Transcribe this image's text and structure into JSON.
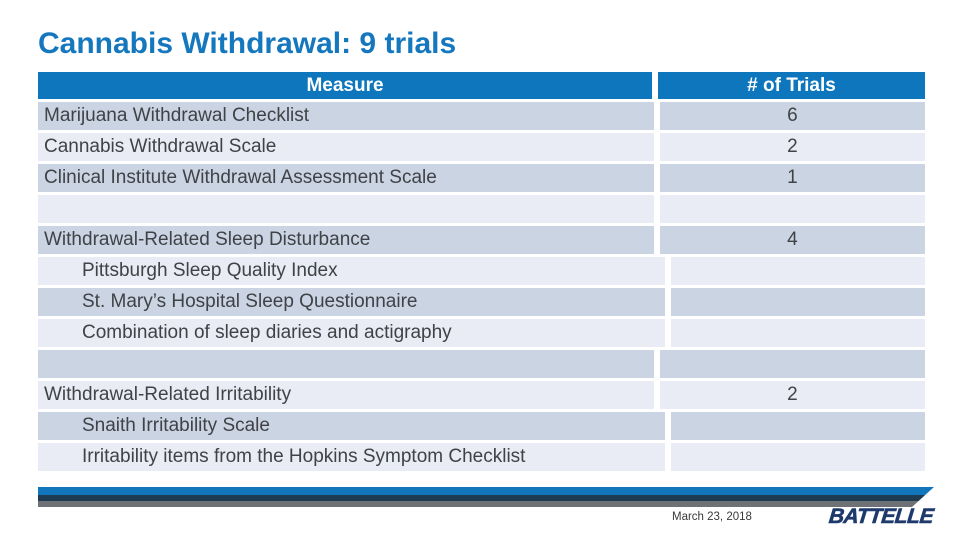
{
  "slide": {
    "title": "Cannabis Withdrawal: 9 trials",
    "footer": {
      "date": "March 23, 2018",
      "logo_text": "BATTELLE"
    }
  },
  "table": {
    "columns": [
      "Measure",
      "# of Trials"
    ],
    "rows": [
      {
        "label": "Marijuana Withdrawal Checklist",
        "value": "6",
        "indent": false
      },
      {
        "label": "Cannabis Withdrawal Scale",
        "value": "2",
        "indent": false
      },
      {
        "label": "Clinical Institute Withdrawal Assessment Scale",
        "value": "1",
        "indent": false
      },
      {
        "label": "",
        "value": "",
        "indent": false
      },
      {
        "label": "Withdrawal-Related Sleep Disturbance",
        "value": "4",
        "indent": false
      },
      {
        "label": "Pittsburgh Sleep Quality Index",
        "value": "",
        "indent": true
      },
      {
        "label": "St. Mary’s Hospital Sleep Questionnaire",
        "value": "",
        "indent": true
      },
      {
        "label": "Combination of sleep diaries and actigraphy",
        "value": "",
        "indent": true
      },
      {
        "label": "",
        "value": "",
        "indent": false
      },
      {
        "label": "Withdrawal-Related Irritability",
        "value": "2",
        "indent": false
      },
      {
        "label": "Snaith Irritability Scale",
        "value": "",
        "indent": true
      },
      {
        "label": "Irritability items from the Hopkins Symptom Checklist",
        "value": "",
        "indent": true
      }
    ]
  },
  "colors": {
    "title_blue": "#1577BE",
    "header_blue": "#0E76BC",
    "row_dark": "#CBD4E3",
    "row_light": "#E9ECF4",
    "cell_text": "#3F4347",
    "bar_blue": "#1276BD",
    "bar_navy": "#1D3B52",
    "bar_gray": "#6E7175",
    "logo_navy": "#1E3A6D",
    "date_text": "#3A3A3A"
  }
}
